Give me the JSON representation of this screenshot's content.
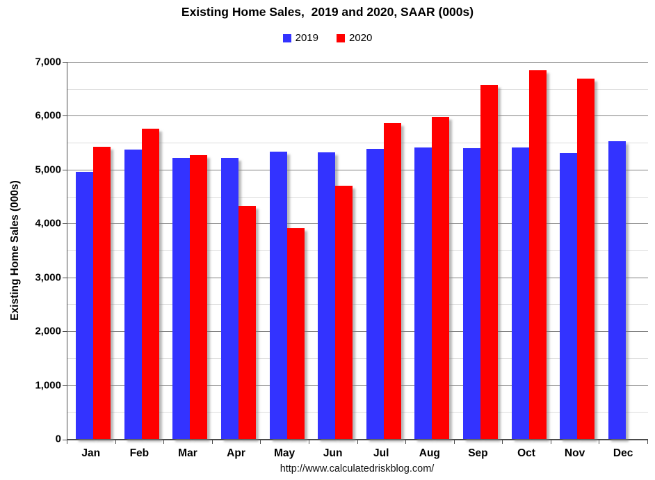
{
  "chart_data": {
    "type": "bar",
    "title": "Existing Home Sales,  2019 and 2020, SAAR (000s)",
    "ylabel": "Existing Home Sales (000s)",
    "xlabel": "",
    "footer": "http://www.calculatedriskblog.com/",
    "legend_position": "top",
    "grid": true,
    "categories": [
      "Jan",
      "Feb",
      "Mar",
      "Apr",
      "May",
      "Jun",
      "Jul",
      "Aug",
      "Sep",
      "Oct",
      "Nov",
      "Dec"
    ],
    "series": [
      {
        "name": "2019",
        "color": "#3333FF",
        "values": [
          4960,
          5370,
          5220,
          5220,
          5330,
          5320,
          5380,
          5410,
          5400,
          5410,
          5310,
          5530
        ]
      },
      {
        "name": "2020",
        "color": "#FF0000",
        "values": [
          5420,
          5760,
          5270,
          4330,
          3910,
          4700,
          5860,
          5980,
          6570,
          6850,
          6690,
          null
        ]
      }
    ],
    "ylim": [
      0,
      7000
    ],
    "y_major_step": 1000,
    "y_minor_step": 500,
    "y_tick_labels": [
      "0",
      "1,000",
      "2,000",
      "3,000",
      "4,000",
      "5,000",
      "6,000",
      "7,000"
    ],
    "colors": {
      "major_grid": "#808080",
      "minor_grid": "#DBDBDB",
      "axis": "#4A4A4A",
      "shadow": "rgba(128,128,128,0.55)",
      "text": "#000000"
    }
  }
}
